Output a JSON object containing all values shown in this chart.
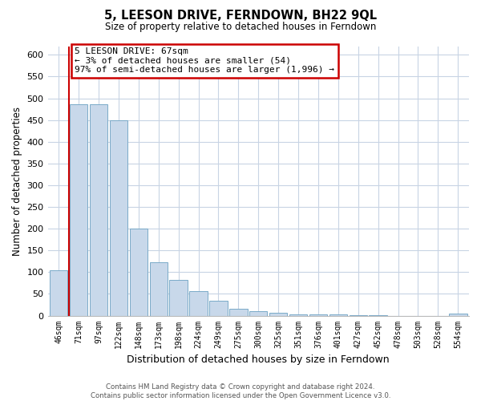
{
  "title": "5, LEESON DRIVE, FERNDOWN, BH22 9QL",
  "subtitle": "Size of property relative to detached houses in Ferndown",
  "xlabel": "Distribution of detached houses by size in Ferndown",
  "ylabel": "Number of detached properties",
  "bar_color": "#c8d8ea",
  "bar_edge_color": "#7aaac8",
  "highlight_color": "#cc0000",
  "categories": [
    "46sqm",
    "71sqm",
    "97sqm",
    "122sqm",
    "148sqm",
    "173sqm",
    "198sqm",
    "224sqm",
    "249sqm",
    "275sqm",
    "300sqm",
    "325sqm",
    "351sqm",
    "376sqm",
    "401sqm",
    "427sqm",
    "452sqm",
    "478sqm",
    "503sqm",
    "528sqm",
    "554sqm"
  ],
  "values": [
    105,
    487,
    487,
    450,
    200,
    122,
    82,
    57,
    35,
    15,
    10,
    7,
    3,
    2,
    2,
    1,
    1,
    0,
    0,
    0,
    5
  ],
  "ylim": [
    0,
    620
  ],
  "yticks": [
    0,
    50,
    100,
    150,
    200,
    250,
    300,
    350,
    400,
    450,
    500,
    550,
    600
  ],
  "annotation_title": "5 LEESON DRIVE: 67sqm",
  "annotation_line1": "← 3% of detached houses are smaller (54)",
  "annotation_line2": "97% of semi-detached houses are larger (1,996) →",
  "vline_bar_index": 0.5,
  "footer1": "Contains HM Land Registry data © Crown copyright and database right 2024.",
  "footer2": "Contains public sector information licensed under the Open Government Licence v3.0.",
  "bg_color": "#ffffff",
  "grid_color": "#c8d4e4"
}
